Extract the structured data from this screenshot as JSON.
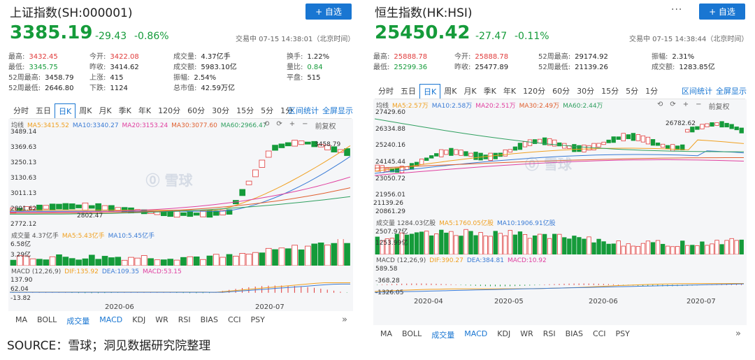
{
  "left": {
    "title": "上证指数(SH:000001)",
    "add_label": "+ 自选",
    "price": "3385.19",
    "change": "-29.43",
    "change_pct": "-0.86%",
    "status": "交易中 07-15 14:38:01（北京时间）",
    "stats": [
      {
        "k": "最高:",
        "v": "3432.45",
        "c": "red"
      },
      {
        "k": "今开:",
        "v": "3422.08",
        "c": "red"
      },
      {
        "k": "成交量:",
        "v": "4.37亿手",
        "c": ""
      },
      {
        "k": "换手:",
        "v": "1.22%",
        "c": ""
      },
      {
        "k": "最低:",
        "v": "3345.75",
        "c": "green"
      },
      {
        "k": "昨收:",
        "v": "3414.62",
        "c": ""
      },
      {
        "k": "成交额:",
        "v": "5983.10亿",
        "c": ""
      },
      {
        "k": "量比:",
        "v": "0.84",
        "c": "green"
      },
      {
        "k": "52周最高:",
        "v": "3458.79",
        "c": ""
      },
      {
        "k": "上涨:",
        "v": "415",
        "c": ""
      },
      {
        "k": "振幅:",
        "v": "2.54%",
        "c": ""
      },
      {
        "k": "平盘:",
        "v": "515",
        "c": ""
      },
      {
        "k": "52周最低:",
        "v": "2646.80",
        "c": ""
      },
      {
        "k": "下跌:",
        "v": "1124",
        "c": ""
      },
      {
        "k": "总市值:",
        "v": "42.59万亿",
        "c": ""
      }
    ],
    "tabs": [
      "分时",
      "五日",
      "日K",
      "周K",
      "月K",
      "季K",
      "年K",
      "120分",
      "60分",
      "30分",
      "15分",
      "5分",
      "1分"
    ],
    "active_tab": 2,
    "tab_links": [
      "区间统计",
      "全屏显示"
    ],
    "ma": [
      {
        "t": "均线",
        "c": "#555"
      },
      {
        "t": "MA5:3415.52",
        "c": "#f0a020"
      },
      {
        "t": "MA10:3340.27",
        "c": "#3a7bd5"
      },
      {
        "t": "MA20:3153.24",
        "c": "#e040a0"
      },
      {
        "t": "MA30:3077.60",
        "c": "#e06030"
      },
      {
        "t": "MA60:2966.47",
        "c": "#30a060"
      }
    ],
    "ctrls": [
      "⟲",
      "⟳",
      "+",
      "−",
      "前复权"
    ],
    "y_labels": [
      "3489.14",
      "3369.63",
      "3250.13",
      "3130.63",
      "3011.13",
      "2891.62",
      "2772.12"
    ],
    "hi_label": "3458.79",
    "lo_label": "2802.47",
    "vol": {
      "label": "成交量 4.37亿手",
      "ma5": "MA5:5.43亿手",
      "ma10": "MA10:5.45亿手",
      "y": [
        "6.58亿",
        "3.29亿"
      ]
    },
    "macd": {
      "label": "MACD (12,26,9)",
      "dif": "DIF:135.92",
      "dea": "DEA:109.35",
      "macd": "MACD:53.15",
      "y": [
        "137.90",
        "62.04",
        "-13.82"
      ]
    },
    "x_labels": [
      "2020-06",
      "2020-07"
    ],
    "indicators": [
      "MA",
      "BOLL",
      "成交量",
      "MACD",
      "KDJ",
      "WR",
      "RSI",
      "BIAS",
      "CCI",
      "PSY"
    ],
    "active_inds": [
      2,
      3
    ],
    "more": "»",
    "watermark": "⓪ 雪球"
  },
  "right": {
    "title": "恒生指数(HK:HSI)",
    "more_label": "···",
    "add_label": "+ 自选",
    "price": "25450.42",
    "change": "-27.47",
    "change_pct": "-0.11%",
    "status": "交易中 07-15 14:38:44（北京时间）",
    "stats": [
      {
        "k": "最高:",
        "v": "25888.78",
        "c": "red"
      },
      {
        "k": "今开:",
        "v": "25888.78",
        "c": "red"
      },
      {
        "k": "52周最高:",
        "v": "29174.92",
        "c": ""
      },
      {
        "k": "振幅:",
        "v": "2.31%",
        "c": ""
      },
      {
        "k": "最低:",
        "v": "25299.36",
        "c": "green"
      },
      {
        "k": "昨收:",
        "v": "25477.89",
        "c": ""
      },
      {
        "k": "52周最低:",
        "v": "21139.26",
        "c": ""
      },
      {
        "k": "成交额:",
        "v": "1283.85亿",
        "c": ""
      }
    ],
    "tabs": [
      "分时",
      "五日",
      "日K",
      "周K",
      "月K",
      "季K",
      "年K",
      "120分",
      "60分",
      "30分",
      "15分",
      "5分",
      "1分"
    ],
    "active_tab": 2,
    "tab_links": [
      "区间统计",
      "全屏显示"
    ],
    "ma": [
      {
        "t": "均线",
        "c": "#555"
      },
      {
        "t": "MA5:2.57万",
        "c": "#f0a020"
      },
      {
        "t": "MA10:2.58万",
        "c": "#3a7bd5"
      },
      {
        "t": "MA20:2.51万",
        "c": "#e040a0"
      },
      {
        "t": "MA30:2.49万",
        "c": "#e06030"
      },
      {
        "t": "MA60:2.44万",
        "c": "#30a060"
      }
    ],
    "ctrls": [
      "⟲",
      "⟳",
      "+",
      "−",
      "前复权"
    ],
    "y_labels": [
      "27429.60",
      "26334.88",
      "25240.16",
      "24145.44",
      "23050.72",
      "21956.01",
      "20861.29"
    ],
    "hi_label": "26782.62",
    "lo_label": "21139.26",
    "vol": {
      "label": "成交量 1284.03亿股",
      "ma5": "MA5:1760.05亿股",
      "ma10": "MA10:1906.91亿股",
      "y": [
        "2507.97亿",
        "1253.99亿"
      ]
    },
    "macd": {
      "label": "MACD (12,26,9)",
      "dif": "DIF:390.27",
      "dea": "DEA:384.81",
      "macd": "MACD:10.92",
      "y": [
        "589.58",
        "-368.28",
        "-1326.05"
      ]
    },
    "x_labels": [
      "2020-04",
      "2020-05",
      "2020-06",
      "2020-07"
    ],
    "indicators": [
      "MA",
      "BOLL",
      "成交量",
      "MACD",
      "KDJ",
      "WR",
      "RSI",
      "BIAS",
      "CCI",
      "PSY"
    ],
    "active_inds": [
      2,
      3
    ],
    "more": "»",
    "watermark": "⓪ 雪球"
  },
  "source": "SOURCE：雪球；洞见数据研究院整理"
}
